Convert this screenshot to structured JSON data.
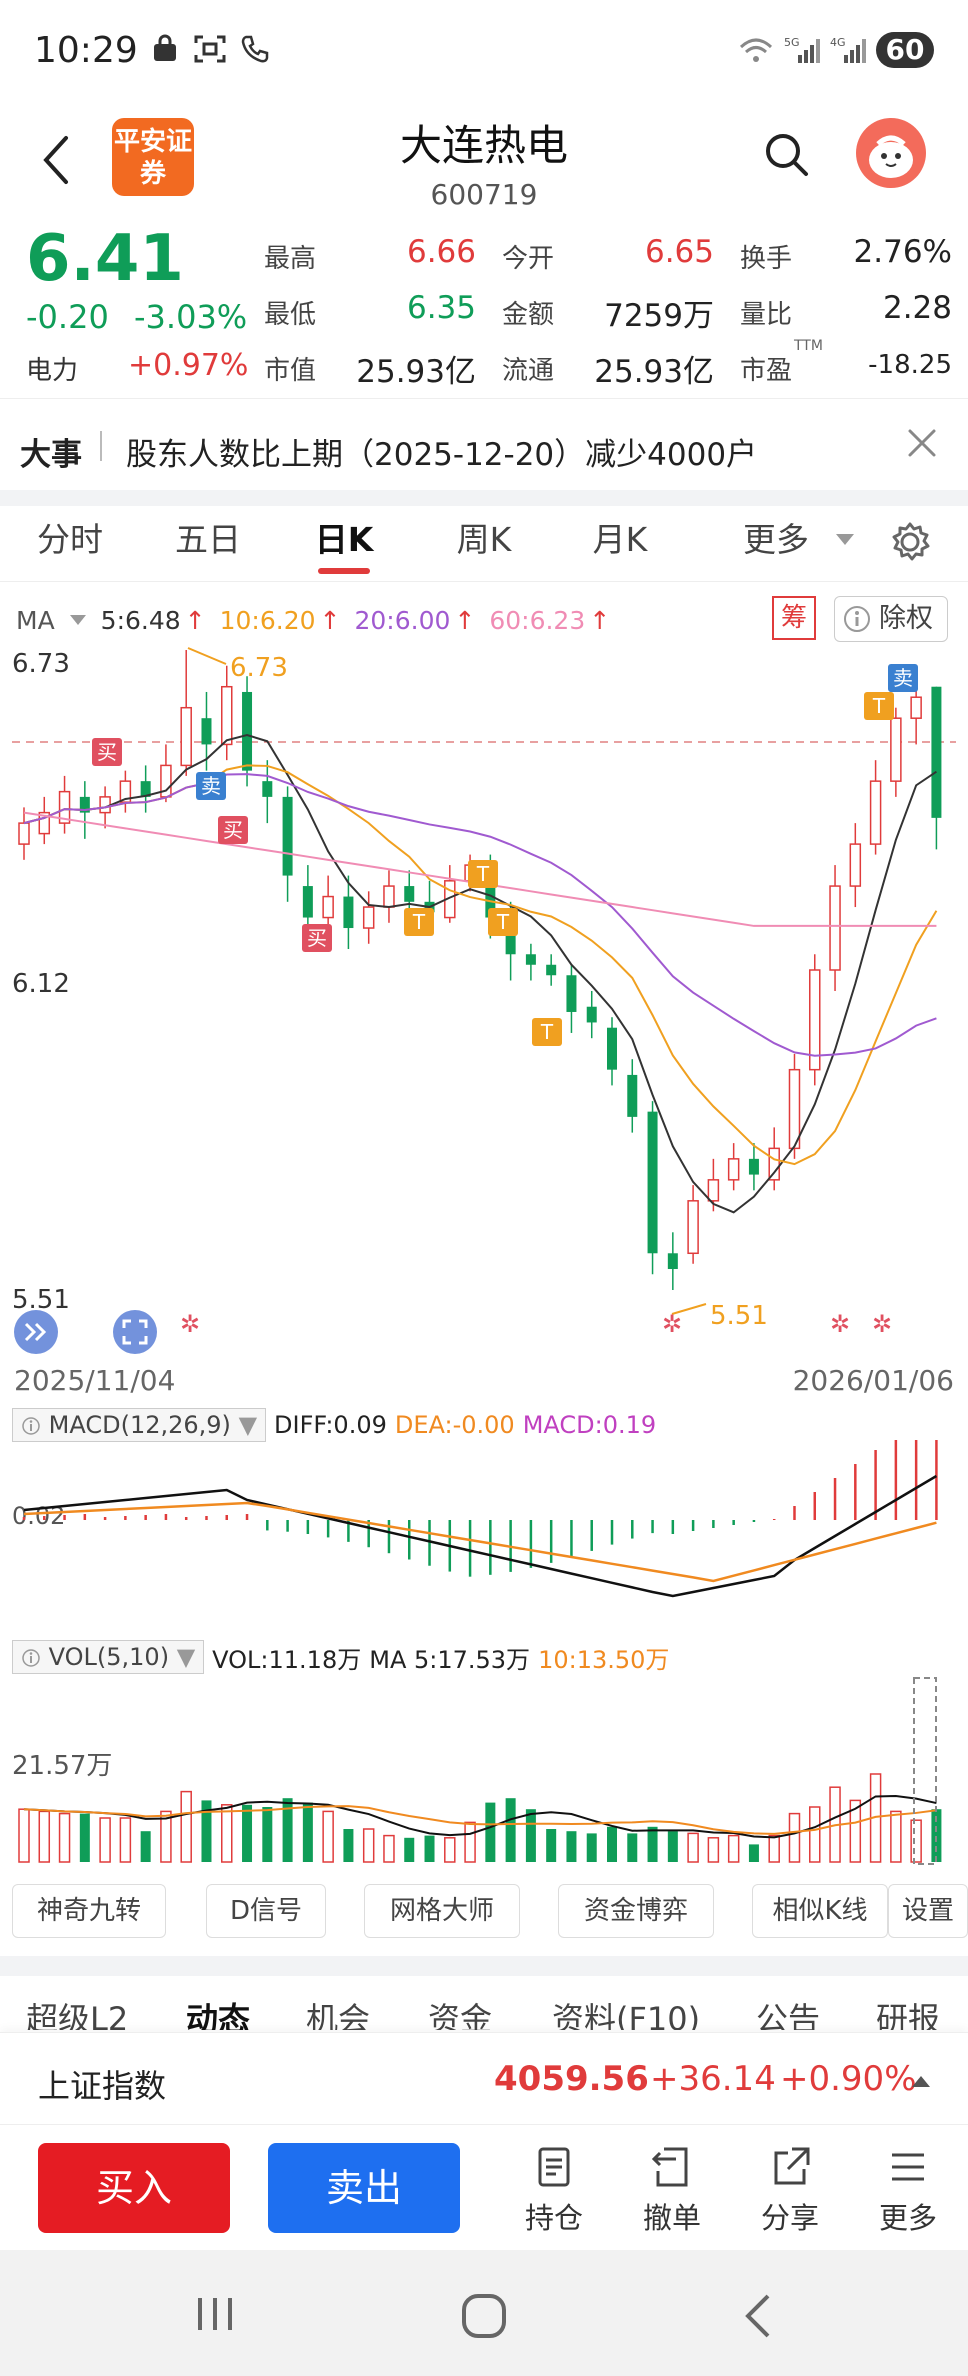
{
  "status_bar": {
    "time": "10:29",
    "network": "5G",
    "network2": "4G",
    "battery": "60"
  },
  "header": {
    "broker_logo": "平安证券",
    "stock_name": "大连热电",
    "stock_code": "600719"
  },
  "quote": {
    "price": "6.41",
    "change": "-0.20",
    "change_pct": "-3.03%",
    "sector_name": "电力",
    "sector_pct": "+0.97%",
    "fields": [
      {
        "label": "最高",
        "value": "6.66"
      },
      {
        "label": "今开",
        "value": "6.65"
      },
      {
        "label": "换手",
        "value": "2.76%"
      },
      {
        "label": "最低",
        "value": "6.35"
      },
      {
        "label": "金额",
        "value": "7259万"
      },
      {
        "label": "量比",
        "value": "2.28"
      },
      {
        "label": "市值",
        "value": "25.93亿"
      },
      {
        "label": "流通",
        "value": "25.93亿"
      },
      {
        "label": "市盈",
        "value": "-18.25"
      }
    ],
    "pe_sup": "TTM"
  },
  "event": {
    "tag": "大事",
    "text": "股东人数比上期（2025-12-20）减少4000户"
  },
  "period_tabs": [
    "分时",
    "五日",
    "日K",
    "周K",
    "月K",
    "更多"
  ],
  "period_active": "日K",
  "ma_legend": {
    "label": "MA",
    "ma5": "5:6.48",
    "ma10": "10:6.20",
    "ma20": "20:6.00",
    "ma60": "60:6.23",
    "chou": "筹",
    "chuquan": "除权"
  },
  "kline": {
    "y_top": "6.73",
    "y_mid": "6.12",
    "y_bottom": "5.51",
    "high_marker": "6.73",
    "low_marker": "5.51",
    "date_start": "2025/11/04",
    "date_end": "2026/01/06",
    "signal_buy": "买",
    "signal_sell": "卖",
    "signal_t": "T",
    "colors": {
      "up": "#e03b3b",
      "down": "#0f9d58",
      "ma5": "#333333",
      "ma10": "#f0a020",
      "ma20": "#a05ad0",
      "ma60": "#f08cb4"
    }
  },
  "macd": {
    "label": "MACD(12,26,9)",
    "diff": "DIFF:0.09",
    "dea": "DEA:-0.00",
    "macd": "MACD:0.19",
    "axis": "0.02"
  },
  "vol": {
    "label": "VOL(5,10)",
    "vol": "VOL:11.18万",
    "ma5": "MA 5:17.53万",
    "ma10": "10:13.50万",
    "axis": "21.57万"
  },
  "tools": [
    "神奇九转",
    "D信号",
    "网格大师",
    "资金博弈",
    "相似K线",
    "设置"
  ],
  "info_tabs": [
    "超级L2",
    "动态",
    "机会",
    "资金",
    "资料(F10)",
    "公告",
    "研报"
  ],
  "info_active": "动态",
  "index_bar": {
    "name": "上证指数",
    "value": "4059.56",
    "change": "+36.14",
    "pct": "+0.90%"
  },
  "actions": {
    "buy": "买入",
    "sell": "卖出",
    "hold": "持仓",
    "cancel": "撤单",
    "share": "分享",
    "more": "更多"
  }
}
